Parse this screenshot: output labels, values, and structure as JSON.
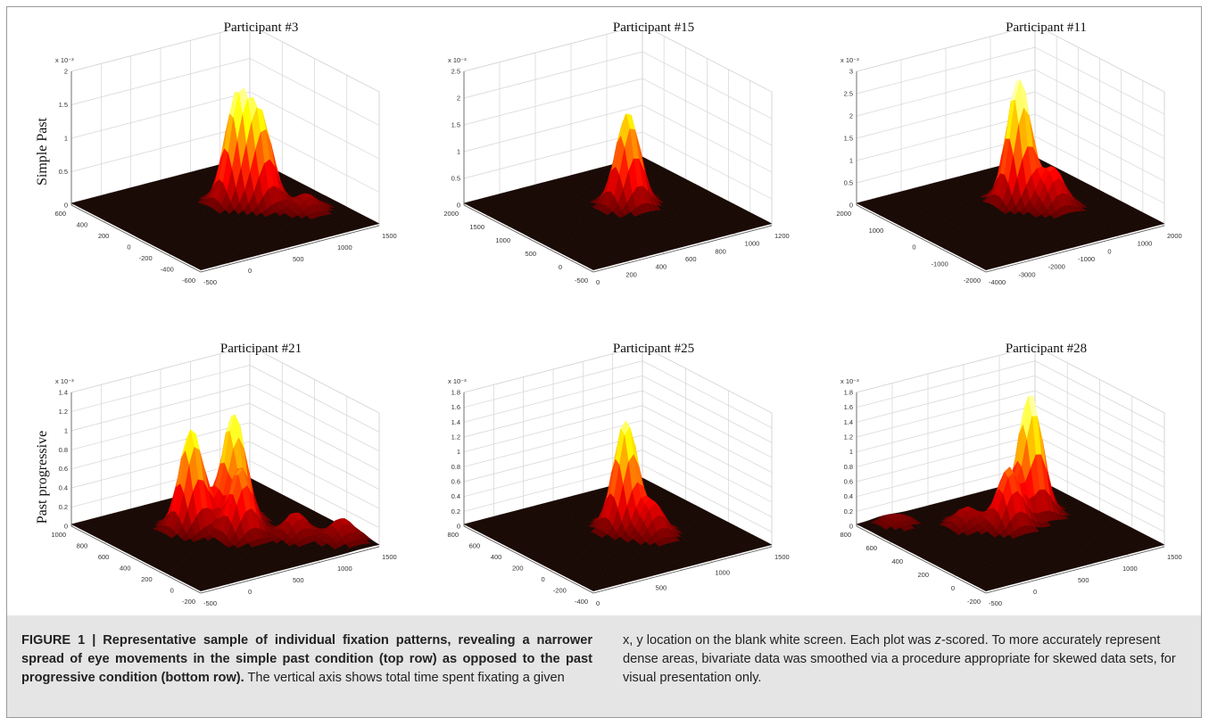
{
  "figure": {
    "row_labels": [
      "Simple Past",
      "Past progressive"
    ],
    "caption": {
      "label": "FIGURE 1 | Representative sample of individual fixation patterns, revealing a narrower spread of eye movements in the simple past condition (top row) as opposed to the past progressive condition (bottom row).",
      "text_left": " The vertical axis shows total time spent fixating a given",
      "text_right_1": "x, y location on the blank white screen. Each plot was ",
      "text_right_z": "z",
      "text_right_2": "-scored. To more accurately represent dense areas, bivariate data was smoothed via a procedure appropriate for skewed data sets, for visual presentation only."
    }
  },
  "colormap": "hot",
  "chart_data": [
    {
      "type": "surface",
      "title": "Participant #3",
      "row_label": "Simple Past",
      "z_multiplier": "x 10⁻³",
      "z_ticks": [
        "0",
        "0.5",
        "1",
        "1.5",
        "2"
      ],
      "z_range": [
        0,
        2
      ],
      "x_ticks": [
        "-500",
        "0",
        "500",
        "1000",
        "1500"
      ],
      "y_ticks": [
        "-600",
        "-400",
        "-200",
        "0",
        "200",
        "400",
        "600"
      ],
      "peaks": [
        {
          "x": 0.62,
          "y": 0.42,
          "height": 1.55
        },
        {
          "x": 0.7,
          "y": 0.5,
          "height": 1.25
        },
        {
          "x": 0.82,
          "y": 0.68,
          "height": 0.25
        }
      ]
    },
    {
      "type": "surface",
      "title": "Participant #15",
      "row_label": "Simple Past",
      "z_multiplier": "x 10⁻³",
      "z_ticks": [
        "0",
        "0.5",
        "1",
        "1.5",
        "2",
        "2.5"
      ],
      "z_range": [
        0,
        2.5
      ],
      "x_ticks": [
        "0",
        "200",
        "400",
        "600",
        "800",
        "1000",
        "1200"
      ],
      "y_ticks": [
        "-500",
        "0",
        "500",
        "1000",
        "1500",
        "2000"
      ],
      "peaks": [
        {
          "x": 0.6,
          "y": 0.44,
          "height": 1.75
        }
      ]
    },
    {
      "type": "surface",
      "title": "Participant #11",
      "row_label": "Simple Past",
      "z_multiplier": "x 10⁻³",
      "z_ticks": [
        "0",
        "0.5",
        "1",
        "1.5",
        "2",
        "2.5",
        "3"
      ],
      "z_range": [
        0,
        3
      ],
      "x_ticks": [
        "-4000",
        "-3000",
        "-2000",
        "-1000",
        "0",
        "1000",
        "2000"
      ],
      "y_ticks": [
        "-2000",
        "-1000",
        "0",
        "1000",
        "2000"
      ],
      "peaks": [
        {
          "x": 0.62,
          "y": 0.4,
          "height": 2.8
        },
        {
          "x": 0.7,
          "y": 0.55,
          "height": 0.9
        }
      ]
    },
    {
      "type": "surface",
      "title": "Participant #21",
      "row_label": "Past progressive",
      "z_multiplier": "x 10⁻³",
      "z_ticks": [
        "0",
        "0.2",
        "0.4",
        "0.6",
        "0.8",
        "1",
        "1.2",
        "1.4"
      ],
      "z_range": [
        0,
        1.4
      ],
      "x_ticks": [
        "-500",
        "0",
        "500",
        "1000",
        "1500"
      ],
      "y_ticks": [
        "-200",
        "0",
        "200",
        "400",
        "600",
        "800",
        "1000"
      ],
      "peaks": [
        {
          "x": 0.42,
          "y": 0.35,
          "height": 1.05
        },
        {
          "x": 0.62,
          "y": 0.4,
          "height": 1.15
        },
        {
          "x": 0.55,
          "y": 0.55,
          "height": 0.7
        },
        {
          "x": 0.75,
          "y": 0.7,
          "height": 0.25
        },
        {
          "x": 0.9,
          "y": 0.85,
          "height": 0.22
        }
      ]
    },
    {
      "type": "surface",
      "title": "Participant #25",
      "row_label": "Past progressive",
      "z_multiplier": "x 10⁻³",
      "z_ticks": [
        "0",
        "0.2",
        "0.4",
        "0.6",
        "0.8",
        "1",
        "1.2",
        "1.4",
        "1.6",
        "1.8"
      ],
      "z_range": [
        0,
        1.8
      ],
      "x_ticks": [
        "0",
        "500",
        "1000",
        "1500"
      ],
      "y_ticks": [
        "-400",
        "-200",
        "0",
        "200",
        "400",
        "600",
        "800"
      ],
      "peaks": [
        {
          "x": 0.58,
          "y": 0.45,
          "height": 1.45
        },
        {
          "x": 0.62,
          "y": 0.6,
          "height": 0.45
        }
      ]
    },
    {
      "type": "surface",
      "title": "Participant #28",
      "row_label": "Past progressive",
      "z_multiplier": "x 10⁻³",
      "z_ticks": [
        "0",
        "0.2",
        "0.4",
        "0.6",
        "0.8",
        "1",
        "1.2",
        "1.4",
        "1.6",
        "1.8"
      ],
      "z_range": [
        0,
        1.8
      ],
      "x_ticks": [
        "-500",
        "0",
        "500",
        "1000",
        "1500"
      ],
      "y_ticks": [
        "-200",
        "0",
        "200",
        "400",
        "600",
        "800"
      ],
      "peaks": [
        {
          "x": 0.72,
          "y": 0.35,
          "height": 1.65
        },
        {
          "x": 0.55,
          "y": 0.42,
          "height": 0.8
        },
        {
          "x": 0.4,
          "y": 0.3,
          "height": 0.25
        },
        {
          "x": 0.15,
          "y": 0.1,
          "height": 0.12
        }
      ]
    }
  ]
}
